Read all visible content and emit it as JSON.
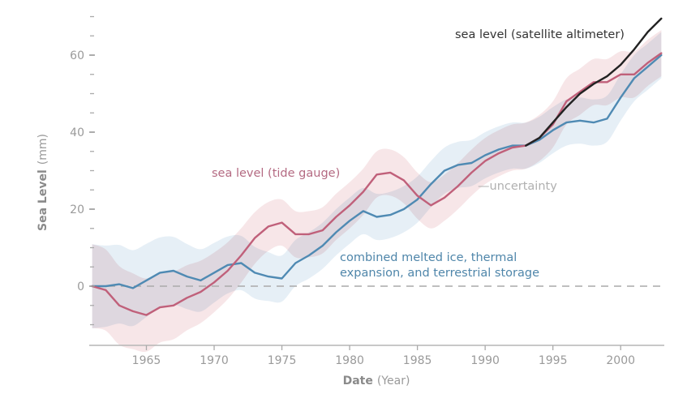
{
  "chart_data": {
    "type": "line",
    "title": "",
    "xlabel": "Date",
    "xlabel_unit": "(Year)",
    "ylabel": "Sea Level",
    "ylabel_unit": "(mm)",
    "xlim": [
      1961,
      2003
    ],
    "ylim": [
      -15,
      70
    ],
    "x_ticks": [
      1965,
      1970,
      1975,
      1980,
      1985,
      1990,
      1995,
      2000
    ],
    "x_tick_labels": [
      "1965",
      "1970",
      "1975",
      "1980",
      "1985",
      "1990",
      "1995",
      "2000"
    ],
    "y_major_ticks": [
      0,
      20,
      40,
      60
    ],
    "y_tick_labels": [
      "0",
      "20",
      "40",
      "60"
    ],
    "y_minor_tick_step": 5,
    "grid": false,
    "reference_line": {
      "y": 0,
      "style": "dashed"
    },
    "series": [
      {
        "name": "sea level (tide gauge)",
        "color": "#c0607a",
        "band_color": "#f4dde0",
        "uncertainty": 6,
        "x": [
          1961,
          1962,
          1963,
          1964,
          1965,
          1966,
          1967,
          1968,
          1969,
          1970,
          1971,
          1972,
          1973,
          1974,
          1975,
          1976,
          1977,
          1978,
          1979,
          1980,
          1981,
          1982,
          1983,
          1984,
          1985,
          1986,
          1987,
          1988,
          1989,
          1990,
          1991,
          1992,
          1993,
          1994,
          1995,
          1996,
          1997,
          1998,
          1999,
          2000,
          2001,
          2002,
          2003
        ],
        "values": [
          0,
          -1,
          -5,
          -6.5,
          -7.5,
          -5.5,
          -5,
          -3,
          -1.5,
          1,
          4,
          8,
          12.5,
          15.5,
          16.5,
          13.5,
          13.5,
          14.5,
          18,
          21,
          24.5,
          29,
          29.5,
          27.5,
          23.5,
          21,
          23,
          26,
          29.5,
          32.5,
          34.5,
          36,
          36.5,
          38.5,
          42,
          48,
          50.5,
          53,
          53,
          55,
          55,
          58,
          60.5
        ]
      },
      {
        "name": "combined melted ice, thermal expansion, and terrestrial storage",
        "color": "#4f8ab3",
        "band_color": "#dde9f3",
        "uncertainty": 6,
        "x": [
          1961,
          1962,
          1963,
          1964,
          1965,
          1966,
          1967,
          1968,
          1969,
          1970,
          1971,
          1972,
          1973,
          1974,
          1975,
          1976,
          1977,
          1978,
          1979,
          1980,
          1981,
          1982,
          1983,
          1984,
          1985,
          1986,
          1987,
          1988,
          1989,
          1990,
          1991,
          1992,
          1993,
          1994,
          1995,
          1996,
          1997,
          1998,
          1999,
          2000,
          2001,
          2002,
          2003
        ],
        "values": [
          0,
          0,
          0.5,
          -0.5,
          1.5,
          3.5,
          4,
          2.5,
          1.5,
          3.5,
          5.5,
          6,
          3.5,
          2.5,
          2,
          6,
          8,
          10.5,
          14,
          17,
          19.5,
          18,
          18.5,
          20,
          22.5,
          26.5,
          30,
          31.5,
          32,
          34,
          35.5,
          36.5,
          36.5,
          38,
          40.5,
          42.5,
          43,
          42.5,
          43.5,
          49,
          54,
          57,
          60
        ]
      },
      {
        "name": "sea level (satellite altimeter)",
        "color": "#222222",
        "x": [
          1993,
          1994,
          1995,
          1996,
          1997,
          1998,
          1999,
          2000,
          2001,
          2002,
          2003
        ],
        "values": [
          36.5,
          38.5,
          42.5,
          46.5,
          50,
          52.5,
          54.5,
          57.5,
          61.5,
          66,
          69.5
        ]
      }
    ],
    "annotations": [
      {
        "text": "sea level (satellite altimeter)",
        "color": "#333333",
        "series": 2
      },
      {
        "text": "sea level (tide gauge)",
        "color": "#b46a82",
        "series": 0
      },
      {
        "text": "—uncertainty",
        "color": "#b0b0b0"
      },
      {
        "text_lines": [
          "combined melted ice, thermal",
          "expansion, and terrestrial storage"
        ],
        "color": "#4f86aa",
        "series": 1
      }
    ]
  }
}
